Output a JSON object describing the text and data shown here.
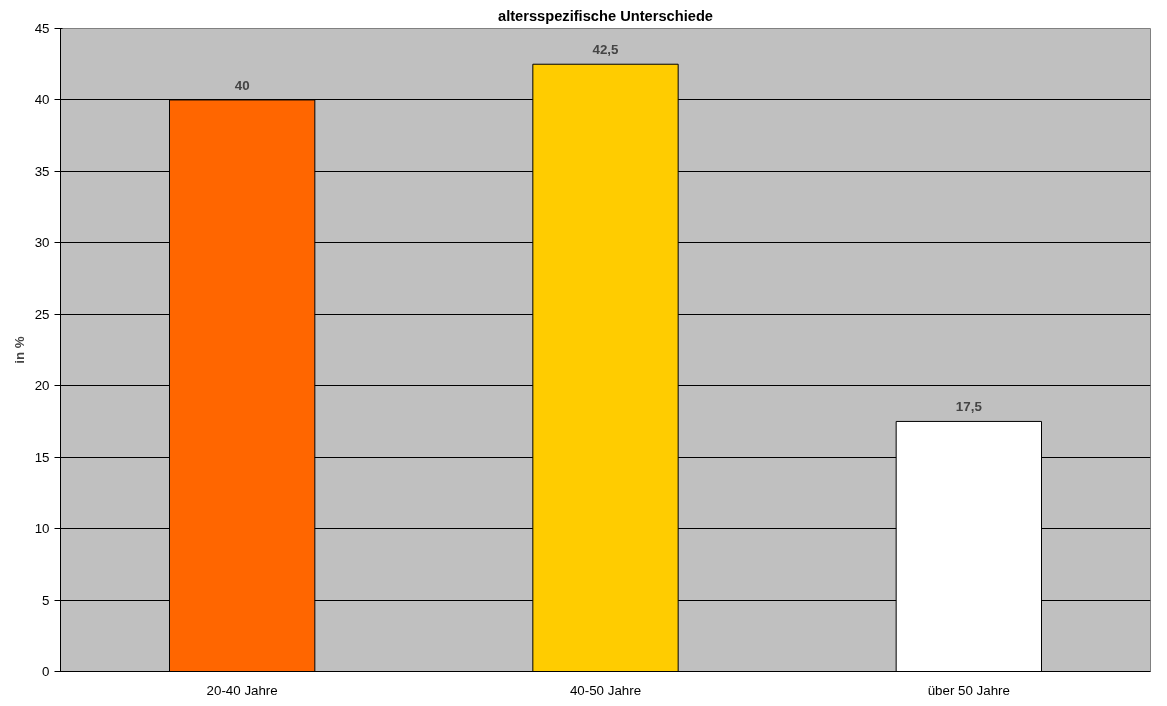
{
  "chart_data": {
    "type": "bar",
    "title": "altersspezifische Unterschiede",
    "ylabel": "in %",
    "categories": [
      "20-40 Jahre",
      "40-50 Jahre",
      "über 50 Jahre"
    ],
    "values": [
      40,
      42.5,
      17.5
    ],
    "colors": [
      "#ff6600",
      "#ffcc00",
      "#ffffff"
    ],
    "value_labels": [
      "40",
      "42,5",
      "17,5"
    ],
    "ylim": [
      0,
      45
    ],
    "yticks": [
      0,
      5,
      10,
      15,
      20,
      25,
      30,
      35,
      40,
      45
    ],
    "grid": "y"
  }
}
